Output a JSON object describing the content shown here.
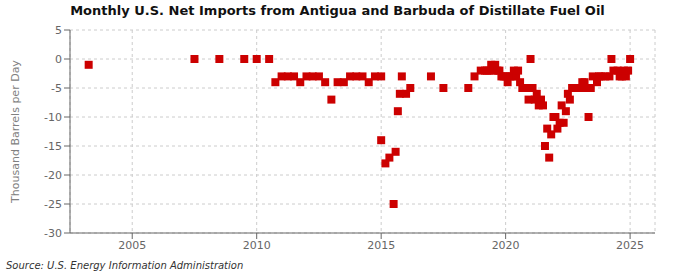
{
  "chart_data": {
    "type": "scatter",
    "title": "Monthly U.S. Net Imports from Antigua and Barbuda of Distillate Fuel Oil",
    "y_label": "Thousand Barrels per Day",
    "annotations": [
      "Source: U.S. Energy Information Administration"
    ],
    "color": "#cc0000",
    "marker": "square",
    "grid": true,
    "xlim": [
      2002.5,
      2026.0
    ],
    "xticks": [
      2005,
      2010,
      2015,
      2020,
      2025
    ],
    "ylim": [
      -30,
      5
    ],
    "yticks": [
      5,
      0,
      -5,
      -10,
      -15,
      -20,
      -25,
      -30
    ],
    "x": [
      2003.25,
      2007.5,
      2008.5,
      2009.5,
      2010.0,
      2010.5,
      2010.75,
      2011.0,
      2011.25,
      2011.5,
      2011.75,
      2012.0,
      2012.25,
      2012.5,
      2012.75,
      2013.0,
      2013.25,
      2013.5,
      2013.75,
      2014.0,
      2014.25,
      2014.5,
      2014.75,
      2015.0,
      2015.0,
      2015.17,
      2015.33,
      2015.5,
      2015.58,
      2015.67,
      2015.75,
      2015.83,
      2016.0,
      2016.17,
      2017.0,
      2017.5,
      2018.5,
      2018.75,
      2019.0,
      2019.17,
      2019.25,
      2019.33,
      2019.42,
      2019.5,
      2019.58,
      2019.67,
      2019.75,
      2019.83,
      2019.92,
      2020.0,
      2020.08,
      2020.17,
      2020.25,
      2020.33,
      2020.42,
      2020.5,
      2020.58,
      2020.67,
      2020.75,
      2020.83,
      2020.92,
      2021.0,
      2021.08,
      2021.17,
      2021.25,
      2021.33,
      2021.42,
      2021.5,
      2021.58,
      2021.67,
      2021.75,
      2021.83,
      2021.92,
      2022.0,
      2022.08,
      2022.17,
      2022.25,
      2022.33,
      2022.42,
      2022.5,
      2022.58,
      2022.67,
      2022.75,
      2022.83,
      2022.92,
      2023.0,
      2023.08,
      2023.17,
      2023.25,
      2023.33,
      2023.42,
      2023.5,
      2023.67,
      2023.75,
      2023.83,
      2024.0,
      2024.17,
      2024.25,
      2024.33,
      2024.5,
      2024.58,
      2024.67,
      2024.75,
      2024.83,
      2024.92,
      2025.0
    ],
    "values": [
      -1,
      0,
      0,
      0,
      0,
      0,
      -4,
      -3,
      -3,
      -3,
      -4,
      -3,
      -3,
      -3,
      -4,
      -7,
      -4,
      -4,
      -3,
      -3,
      -3,
      -4,
      -3,
      -3,
      -14,
      -18,
      -17,
      -25,
      -16,
      -9,
      -6,
      -3,
      -6,
      -5,
      -3,
      -5,
      -5,
      -3,
      -2,
      -2,
      -2,
      -2,
      -1,
      -2,
      -1,
      -2,
      -2,
      -3,
      -3,
      -3,
      -4,
      -3,
      -3,
      -2,
      -3,
      -2,
      -4,
      -5,
      -5,
      -5,
      -7,
      0,
      -5,
      -7,
      -6,
      -8,
      -7,
      -8,
      -15,
      -12,
      -17,
      -13,
      -10,
      -10,
      -12,
      -11,
      -8,
      -11,
      -9,
      -6,
      -7,
      -5,
      -5,
      -5,
      -5,
      -5,
      -4,
      -4,
      -5,
      -10,
      -5,
      -3,
      -4,
      -3,
      -3,
      -3,
      -3,
      0,
      -2,
      -2,
      -3,
      -3,
      -2,
      -3,
      -2,
      0
    ]
  }
}
